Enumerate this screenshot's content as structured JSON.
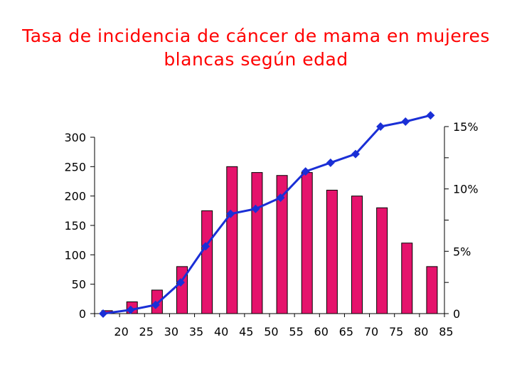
{
  "chart_data": {
    "type": "bar+line",
    "title_lines": [
      "Tasa de incidencia de cáncer de mama en mujeres",
      "blancas según edad"
    ],
    "xlabel": "",
    "ylabel": "",
    "categories": [
      "20",
      "25",
      "30",
      "35",
      "40",
      "45",
      "50",
      "55",
      "60",
      "65",
      "70",
      "75",
      "80",
      "85"
    ],
    "x_tick_labels": [
      "20",
      "25",
      "30",
      "35",
      "40",
      "45",
      "50",
      "55",
      "60",
      "65",
      "70",
      "75",
      "80",
      "85"
    ],
    "bar_series": {
      "axis": "left",
      "values": [
        5,
        20,
        40,
        80,
        175,
        250,
        240,
        235,
        240,
        210,
        200,
        180,
        120,
        80
      ],
      "color": "#e5136c"
    },
    "line_series": {
      "axis": "right",
      "values": [
        0,
        0.3,
        0.7,
        2.5,
        5.4,
        8,
        8.4,
        9.3,
        11.4,
        12.1,
        12.8,
        15,
        15.4,
        15.9
      ],
      "color": "#1a2fd6"
    },
    "y_left": {
      "lim": [
        0,
        300
      ],
      "ticks": [
        0,
        50,
        100,
        150,
        200,
        250,
        300
      ],
      "tick_labels": [
        "0",
        "50",
        "100",
        "150",
        "200",
        "250",
        "300"
      ]
    },
    "y_right": {
      "lim": [
        0,
        15
      ],
      "ticks": [
        0,
        5,
        10,
        15
      ],
      "tick_labels": [
        "0",
        "5%",
        "10%",
        "15%"
      ]
    },
    "grid": false,
    "legend": "none"
  }
}
